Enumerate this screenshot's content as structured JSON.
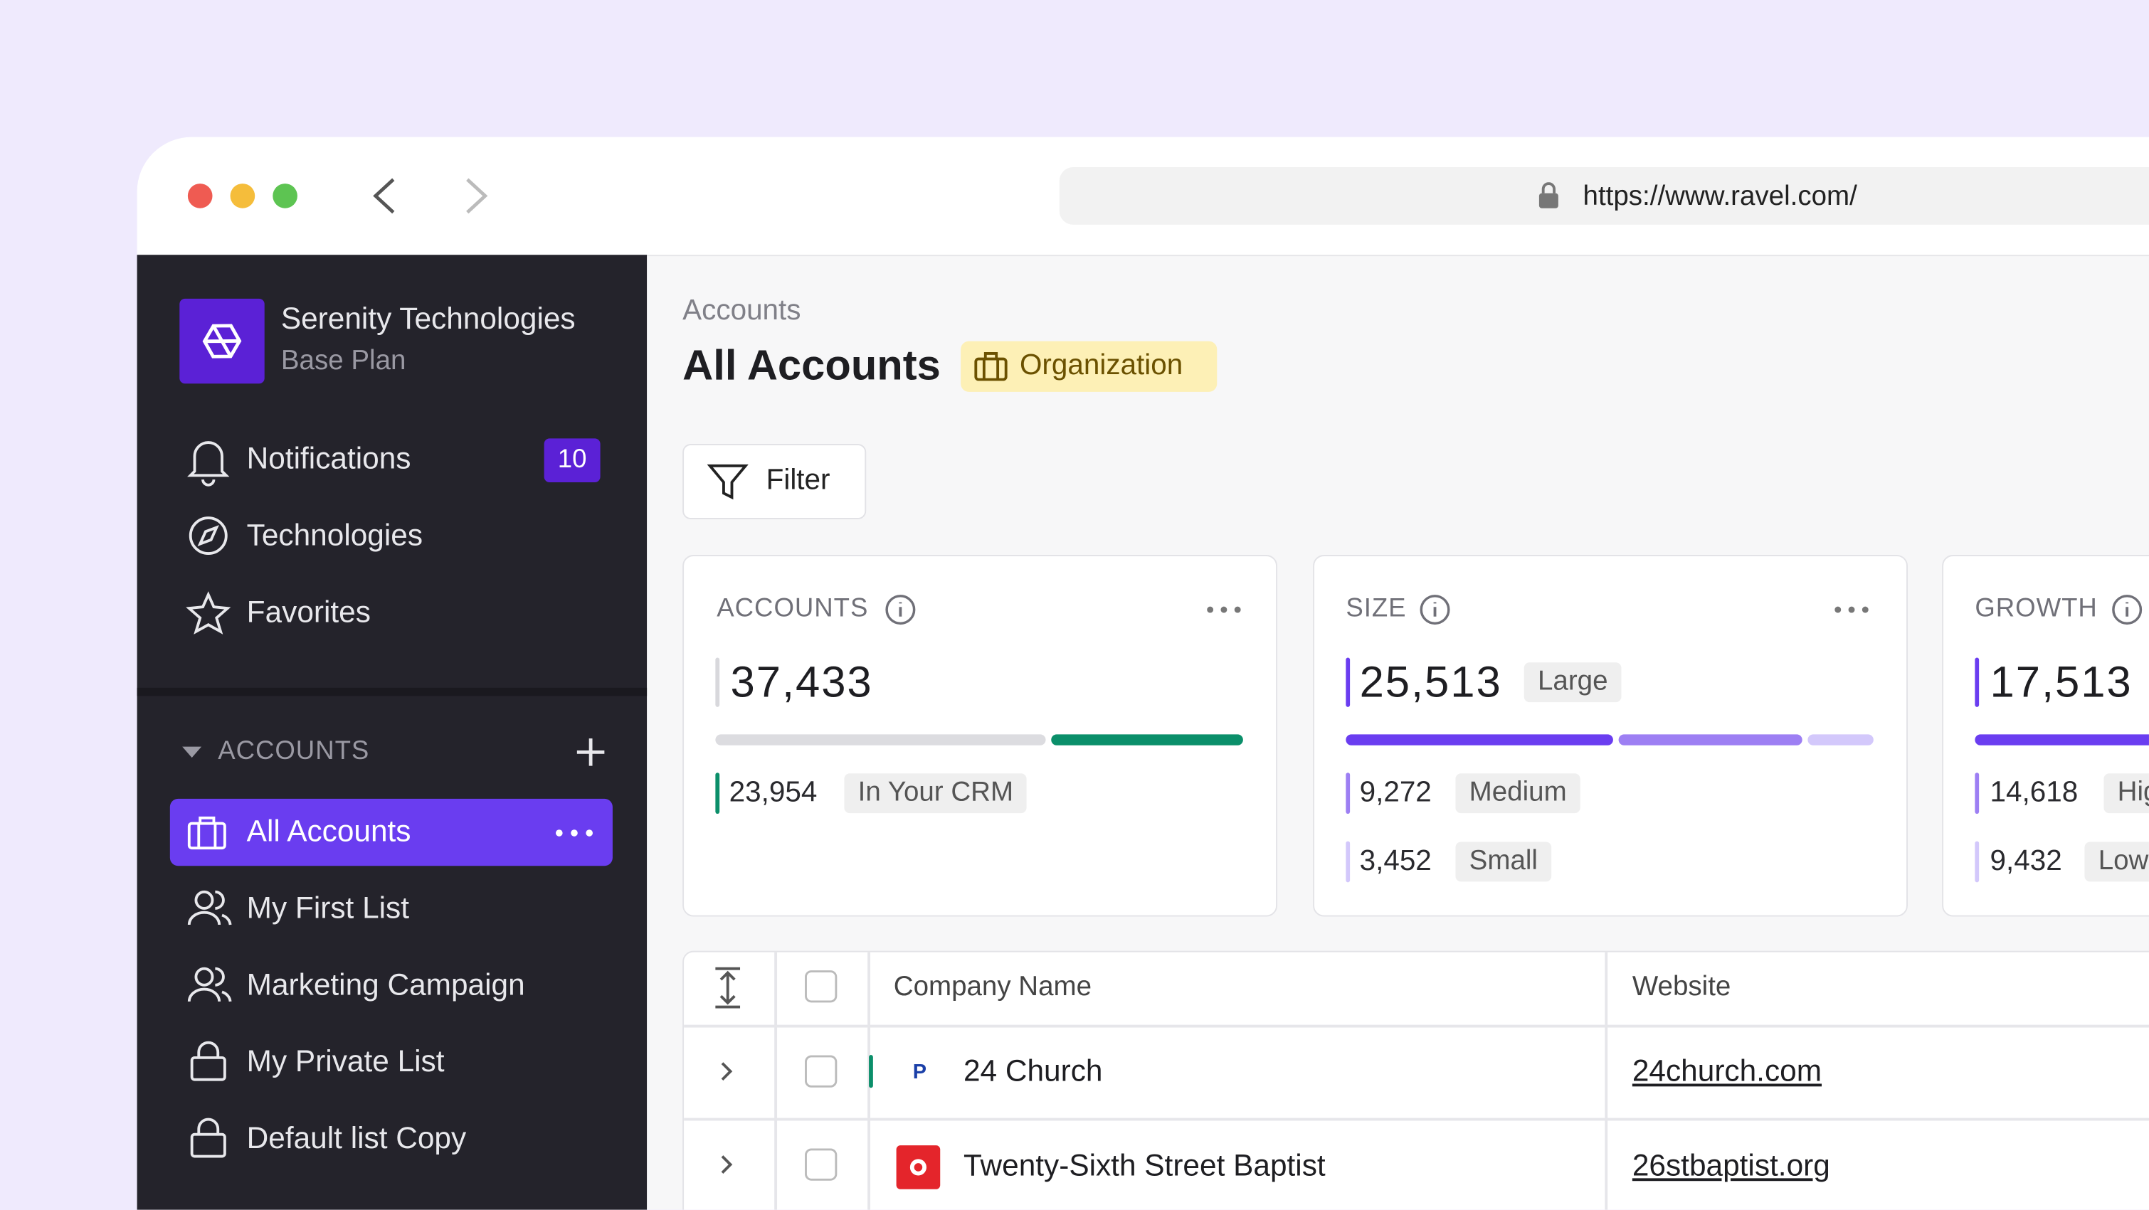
{
  "browser": {
    "url": "https://www.ravel.com/"
  },
  "sidebar": {
    "org_name": "Serenity Technologies",
    "plan": "Base Plan",
    "nav": [
      {
        "label": "Notifications",
        "badge": "10"
      },
      {
        "label": "Technologies"
      },
      {
        "label": "Favorites"
      }
    ],
    "section": "ACCOUNTS",
    "lists": [
      "All Accounts",
      "My First List",
      "Marketing Campaign",
      "My Private List",
      "Default list Copy"
    ]
  },
  "main": {
    "breadcrumb": "Accounts",
    "title": "All Accounts",
    "badge": "Organization",
    "filter": "Filter",
    "cards": [
      {
        "label": "ACCOUNTS",
        "total": "37,433",
        "rows": [
          {
            "value": "23,954",
            "tag": "In Your CRM"
          }
        ]
      },
      {
        "label": "SIZE",
        "total": "25,513",
        "total_tag": "Large",
        "rows": [
          {
            "value": "9,272",
            "tag": "Medium"
          },
          {
            "value": "3,452",
            "tag": "Small"
          }
        ]
      },
      {
        "label": "GROWTH",
        "total": "17,513",
        "rows": [
          {
            "value": "14,618",
            "tag": "High"
          },
          {
            "value": "9,432",
            "tag": "Low"
          }
        ]
      }
    ],
    "table": {
      "columns": [
        "Company Name",
        "Website"
      ],
      "rows": [
        {
          "name": "24 Church",
          "website": "24church.com"
        },
        {
          "name": "Twenty-Sixth Street Baptist",
          "website": "26stbaptist.org"
        }
      ]
    }
  }
}
